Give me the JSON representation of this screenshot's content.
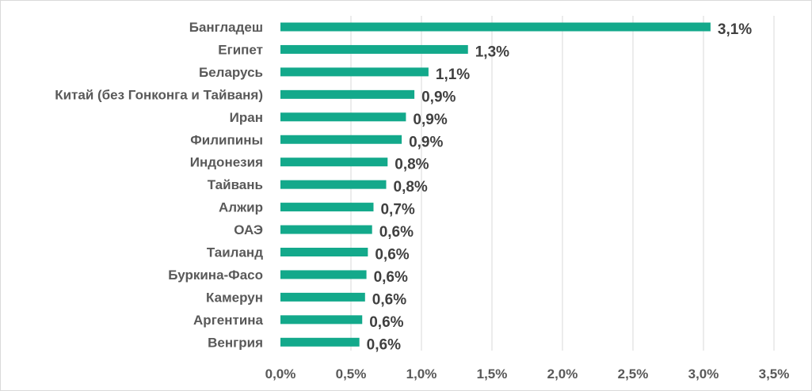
{
  "chart_data": {
    "type": "bar",
    "orientation": "horizontal",
    "title": "",
    "xlabel": "",
    "ylabel": "",
    "categories": [
      "Бангладеш",
      "Египет",
      "Беларусь",
      "Китай (без Гонконга и Тайваня)",
      "Иран",
      "Филипины",
      "Индонезия",
      "Тайвань",
      "Алжир",
      "ОАЭ",
      "Таиланд",
      "Буркина-Фасо",
      "Камерун",
      "Аргентина",
      "Венгрия"
    ],
    "values": [
      3.05,
      1.33,
      1.05,
      0.95,
      0.89,
      0.86,
      0.76,
      0.75,
      0.66,
      0.65,
      0.62,
      0.61,
      0.6,
      0.58,
      0.56
    ],
    "data_labels": [
      "3,1%",
      "1,3%",
      "1,1%",
      "0,9%",
      "0,9%",
      "0,9%",
      "0,8%",
      "0,8%",
      "0,7%",
      "0,6%",
      "0,6%",
      "0,6%",
      "0,6%",
      "0,6%",
      "0,6%"
    ],
    "xlim": [
      0,
      3.5
    ],
    "ticks": [
      0,
      0.5,
      1.0,
      1.5,
      2.0,
      2.5,
      3.0,
      3.5
    ],
    "tick_labels": [
      "0,0%",
      "0,5%",
      "1,0%",
      "1,5%",
      "2,0%",
      "2,5%",
      "3,0%",
      "3,5%"
    ],
    "grid": true,
    "legend": false,
    "colors": {
      "bar": "#13a98b",
      "grid": "#d9d9d9",
      "text": "#595959",
      "data_label": "#404040"
    }
  }
}
